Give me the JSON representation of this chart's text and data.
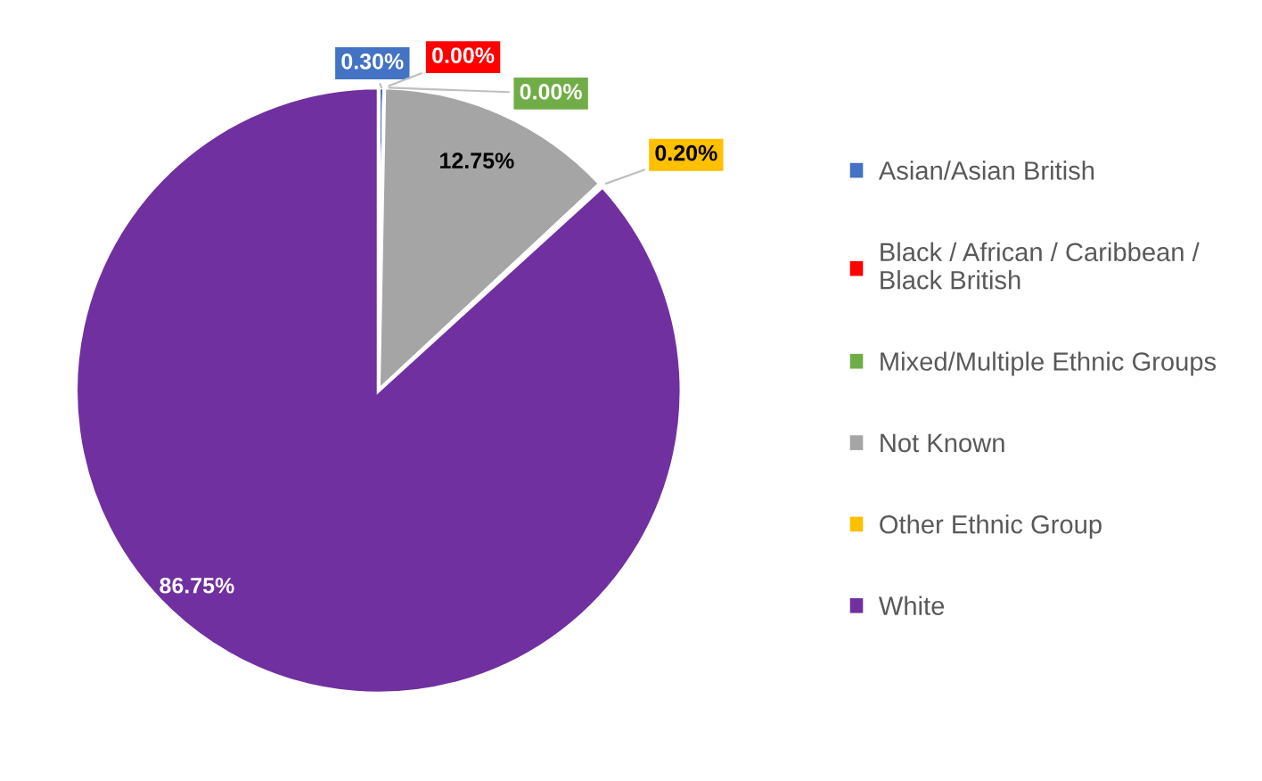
{
  "chart_data": {
    "type": "pie",
    "categories": [
      "Asian/Asian British",
      "Black / African / Caribbean /\nBlack British",
      "Mixed/Multiple Ethnic Groups",
      "Not Known",
      "Other Ethnic Group",
      "White"
    ],
    "values": [
      0.3,
      0.0,
      0.0,
      12.75,
      0.2,
      86.75
    ],
    "colors": [
      "#4472c4",
      "#ff0000",
      "#70ad47",
      "#a5a5a5",
      "#ffc000",
      "#7030a0"
    ],
    "value_labels": [
      "0.30%",
      "0.00%",
      "0.00%",
      "12.75%",
      "0.20%",
      "86.75%"
    ],
    "legend": "right"
  }
}
